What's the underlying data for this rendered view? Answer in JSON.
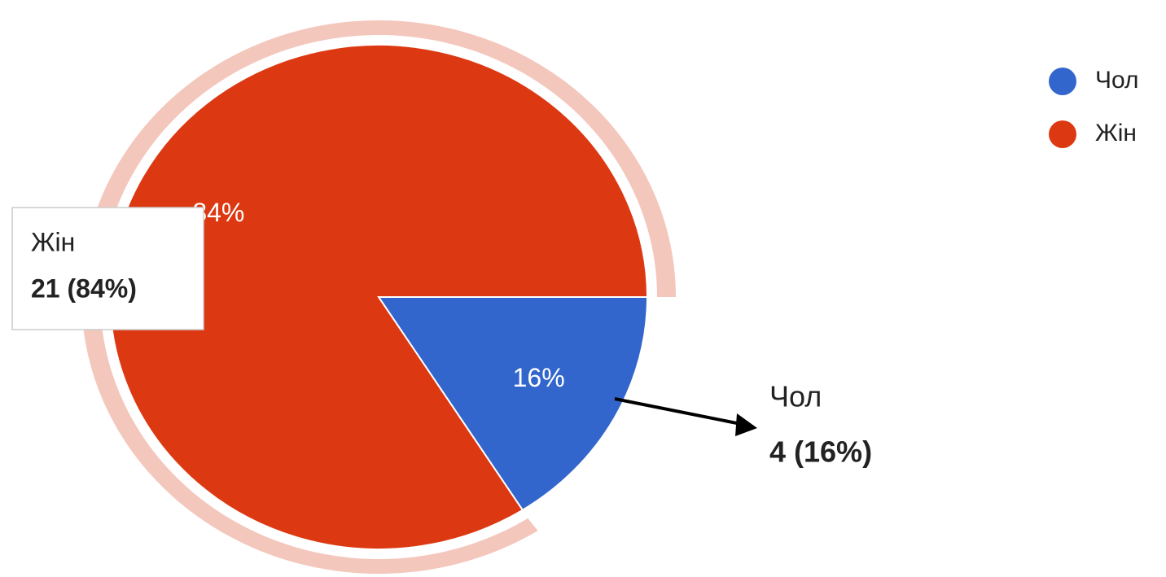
{
  "chart_data": {
    "type": "pie",
    "categories": [
      "Чол",
      "Жін"
    ],
    "values": [
      16,
      84
    ],
    "value_labels": [
      "16%",
      "84%"
    ],
    "colors": [
      "#3366cc",
      "#dc3912"
    ],
    "legend": "right",
    "tooltip": {
      "label": "Жін",
      "text": "21 (84%)"
    },
    "annotation": {
      "label": "Чол",
      "text": "4 (16%)"
    }
  }
}
